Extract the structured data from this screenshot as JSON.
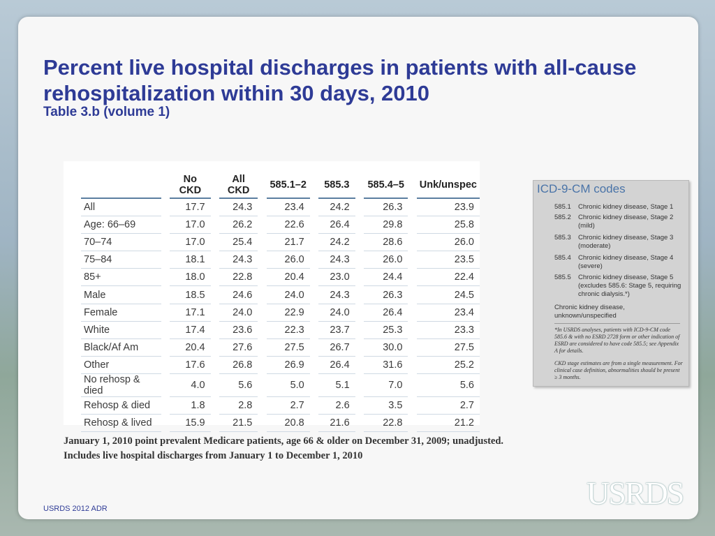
{
  "title": "Percent live hospital discharges in patients with all-cause rehospitalization within 30 days, 2010",
  "subtitle": "Table 3.b (volume 1)",
  "table": {
    "columns": [
      "No CKD",
      "All CKD",
      "585.1–2",
      "585.3",
      "585.4–5",
      "Unk/unspec"
    ],
    "rows": [
      {
        "label": "All",
        "values": [
          "17.7",
          "24.3",
          "23.4",
          "24.2",
          "26.3",
          "23.9"
        ]
      },
      {
        "label": "Age: 66–69",
        "values": [
          "17.0",
          "26.2",
          "22.6",
          "26.4",
          "29.8",
          "25.8"
        ]
      },
      {
        "label": "70–74",
        "values": [
          "17.0",
          "25.4",
          "21.7",
          "24.2",
          "28.6",
          "26.0"
        ]
      },
      {
        "label": "75–84",
        "values": [
          "18.1",
          "24.3",
          "26.0",
          "24.3",
          "26.0",
          "23.5"
        ]
      },
      {
        "label": "85+",
        "values": [
          "18.0",
          "22.8",
          "20.4",
          "23.0",
          "24.4",
          "22.4"
        ]
      },
      {
        "label": "Male",
        "values": [
          "18.5",
          "24.6",
          "24.0",
          "24.3",
          "26.3",
          "24.5"
        ]
      },
      {
        "label": "Female",
        "values": [
          "17.1",
          "24.0",
          "22.9",
          "24.0",
          "26.4",
          "23.4"
        ]
      },
      {
        "label": "White",
        "values": [
          "17.4",
          "23.6",
          "22.3",
          "23.7",
          "25.3",
          "23.3"
        ]
      },
      {
        "label": "Black/Af Am",
        "values": [
          "20.4",
          "27.6",
          "27.5",
          "26.7",
          "30.0",
          "27.5"
        ]
      },
      {
        "label": "Other",
        "values": [
          "17.6",
          "26.8",
          "26.9",
          "26.4",
          "31.6",
          "25.2"
        ]
      },
      {
        "label": "No rehosp & died",
        "values": [
          "4.0",
          "5.6",
          "5.0",
          "5.1",
          "7.0",
          "5.6"
        ]
      },
      {
        "label": "Rehosp & died",
        "values": [
          "1.8",
          "2.8",
          "2.7",
          "2.6",
          "3.5",
          "2.7"
        ]
      },
      {
        "label": "Rehosp & lived",
        "values": [
          "15.9",
          "21.5",
          "20.8",
          "21.6",
          "22.8",
          "21.2"
        ]
      }
    ]
  },
  "icd": {
    "title": "ICD-9-CM codes",
    "codes": [
      {
        "code": "585.1",
        "desc": "Chronic kidney disease, Stage 1"
      },
      {
        "code": "585.2",
        "desc": "Chronic kidney disease, Stage 2 (mild)"
      },
      {
        "code": "585.3",
        "desc": "Chronic kidney disease, Stage 3 (moderate)"
      },
      {
        "code": "585.4",
        "desc": "Chronic kidney disease, Stage 4 (severe)"
      },
      {
        "code": "585.5",
        "desc": "Chronic kidney disease, Stage 5 (excludes 585.6: Stage 5, requiring chronic dialysis.*)"
      }
    ],
    "other": "Chronic kidney disease, unknown/unspecified",
    "note1": "*In USRDS analyses, patients with ICD-9-CM code 585.6 & with no ESRD 2728 form or other indication of ESRD are considered to have code 585.5; see Appendix A for details.",
    "note2": "CKD stage estimates are from a single measurement. For clinical case definition, abnormalities should be present ≥ 3 months."
  },
  "footnote": "January 1, 2010 point prevalent Medicare patients, age 66 & older on December 31, 2009; unadjusted. Includes live hospital discharges from January 1 to December 1, 2010",
  "footer": "USRDS 2012 ADR",
  "logo_text": "USRDS"
}
